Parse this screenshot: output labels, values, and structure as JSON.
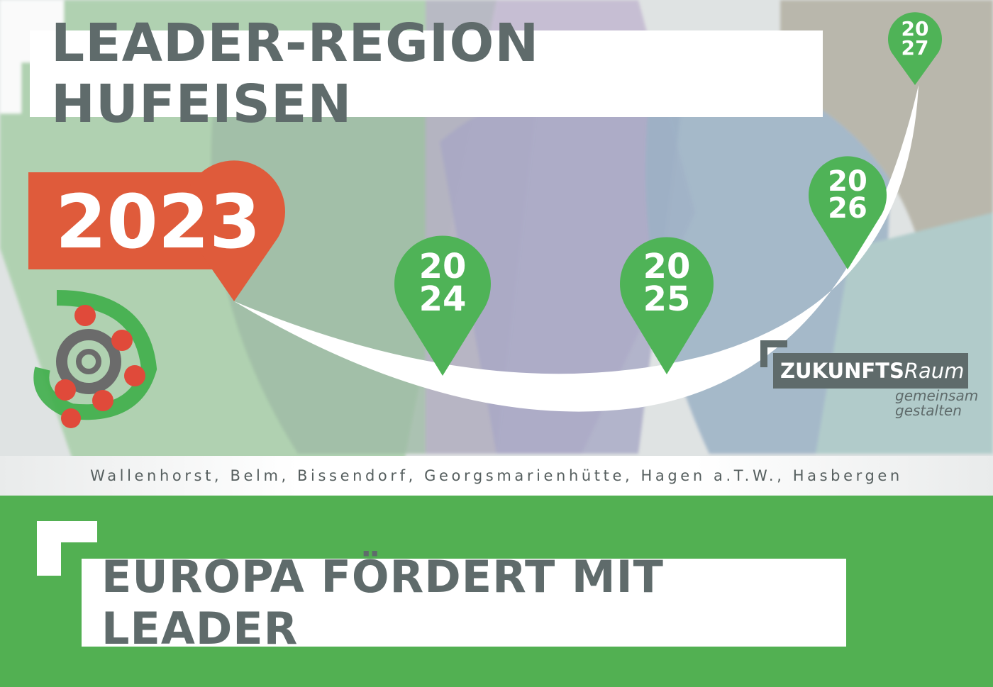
{
  "header": {
    "title": "LEADER-REGION HUFEISEN"
  },
  "timeline": {
    "current_year": "2023",
    "pins": [
      {
        "top": "20",
        "bottom": "24"
      },
      {
        "top": "20",
        "bottom": "25"
      },
      {
        "top": "20",
        "bottom": "26"
      },
      {
        "top": "20",
        "bottom": "27"
      }
    ]
  },
  "towns": "Wallenhorst, Belm, Bissendorf, Georgsmarienhütte, Hagen a.T.W., Hasbergen",
  "zukunftsraum": {
    "bold": "ZUKUNFTS",
    "light": "Raum",
    "line1": "gemeinsam",
    "line2": "gestalten"
  },
  "footer": {
    "slogan": "EUROPA FÖRDERT MIT LEADER"
  },
  "colors": {
    "green": "#52b052",
    "pin_green": "#4fb357",
    "orange": "#df5b3b",
    "gray": "#5f6b6b"
  }
}
